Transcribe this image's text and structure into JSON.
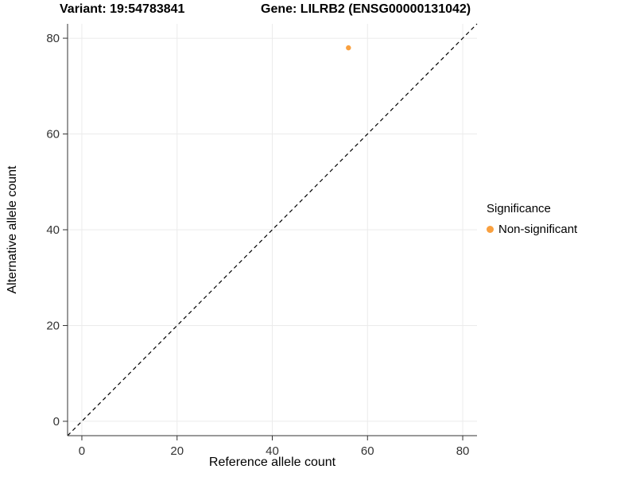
{
  "header": {
    "variant_title": "Variant: 19:54783841",
    "gene_title": "Gene: LILRB2 (ENSG00000131042)"
  },
  "chart_data": {
    "type": "scatter",
    "xlabel": "Reference allele count",
    "ylabel": "Alternative allele count",
    "xlim": [
      0,
      80
    ],
    "ylim": [
      0,
      80
    ],
    "xticks": [
      0,
      20,
      40,
      60,
      80
    ],
    "yticks": [
      0,
      20,
      40,
      60,
      80
    ],
    "grid": true,
    "identity_line": {
      "style": "dashed",
      "color": "#000000"
    },
    "points": [
      {
        "x": 56,
        "y": 78,
        "series": "Non-significant"
      }
    ],
    "legend": {
      "title": "Significance",
      "position": "right",
      "items": [
        {
          "label": "Non-significant",
          "color": "#F9A03F"
        }
      ]
    }
  }
}
